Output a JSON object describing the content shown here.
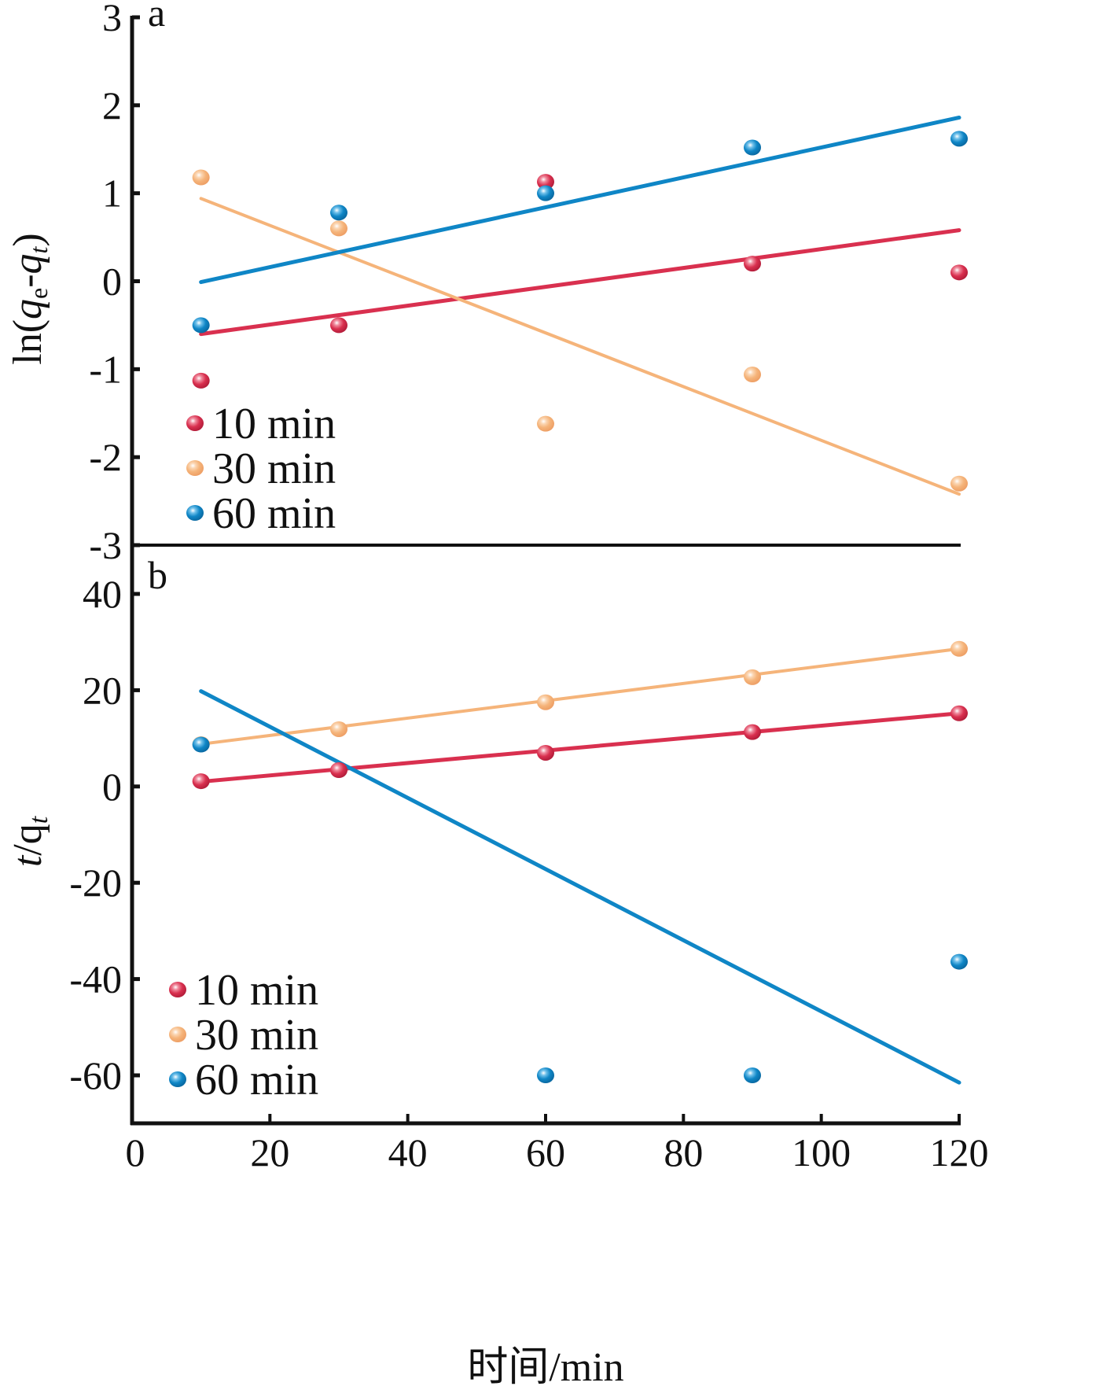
{
  "chart_data": [
    {
      "panel": "a",
      "type": "scatter",
      "title": "",
      "xlabel": "时间/min",
      "ylabel": "ln(qe-qt)",
      "xlim": [
        0,
        120
      ],
      "ylim": [
        -3,
        3
      ],
      "xticks": [
        "0",
        "20",
        "40",
        "60",
        "80",
        "100",
        "120"
      ],
      "yticks": [
        "3",
        "2",
        "1",
        "0",
        "-1",
        "-2",
        "-3"
      ],
      "ytick_values": [
        3,
        2,
        1,
        0,
        -1,
        -2,
        -3
      ],
      "grid": false,
      "legend_position": "bottom-left",
      "x": [
        10,
        30,
        60,
        90,
        120
      ],
      "series": [
        {
          "name": "10 min",
          "color": "#d9304f",
          "values": [
            -1.13,
            -0.5,
            1.13,
            0.2,
            0.1
          ],
          "fit": [
            [
              10,
              -0.6
            ],
            [
              120,
              0.58
            ]
          ]
        },
        {
          "name": "30 min",
          "color": "#f5b47a",
          "values": [
            1.18,
            0.6,
            -1.62,
            -1.06,
            -2.3
          ],
          "fit": [
            [
              10,
              0.94
            ],
            [
              120,
              -2.42
            ]
          ]
        },
        {
          "name": "60 min",
          "color": "#0f86c6",
          "values": [
            -0.5,
            0.78,
            1.0,
            1.52,
            1.62
          ],
          "fit": [
            [
              10,
              -0.01
            ],
            [
              120,
              1.86
            ]
          ]
        }
      ]
    },
    {
      "panel": "b",
      "type": "scatter",
      "title": "",
      "xlabel": "时间/min",
      "ylabel": "t/qt",
      "xlim": [
        0,
        120
      ],
      "ylim": [
        -70,
        44
      ],
      "xticks": [
        "0",
        "20",
        "40",
        "60",
        "80",
        "100",
        "120"
      ],
      "yticks": [
        "40",
        "20",
        "0",
        "-20",
        "-40",
        "-60"
      ],
      "ytick_values": [
        40,
        20,
        0,
        -20,
        -40,
        -60
      ],
      "grid": false,
      "legend_position": "bottom-left",
      "x": [
        10,
        30,
        60,
        90,
        120
      ],
      "series": [
        {
          "name": "10 min",
          "color": "#d9304f",
          "values": [
            1.1,
            3.4,
            7.0,
            11.3,
            15.2
          ],
          "fit": [
            [
              10,
              1.0
            ],
            [
              120,
              15.2
            ]
          ]
        },
        {
          "name": "30 min",
          "color": "#f5b47a",
          "values": [
            8.8,
            11.9,
            17.5,
            22.7,
            28.6
          ],
          "fit": [
            [
              10,
              8.8
            ],
            [
              120,
              28.6
            ]
          ]
        },
        {
          "name": "60 min",
          "color": "#0f86c6",
          "values": [
            8.7,
            null,
            -60,
            -60,
            -36.4
          ],
          "fit": [
            [
              10,
              19.8
            ],
            [
              120,
              -61.5
            ]
          ]
        }
      ]
    }
  ],
  "labels": {
    "panel_a": "a",
    "panel_b": "b",
    "ylabel_a_prefix": "ln(",
    "ylabel_a_q1": "q",
    "ylabel_a_sub1": "e",
    "ylabel_a_mid": "-",
    "ylabel_a_q2": "q",
    "ylabel_a_sub2": "t",
    "ylabel_a_suffix": ")",
    "ylabel_b_t": "t",
    "ylabel_b_q": "/q",
    "ylabel_b_sub": "t",
    "xlabel": "时间/min"
  }
}
